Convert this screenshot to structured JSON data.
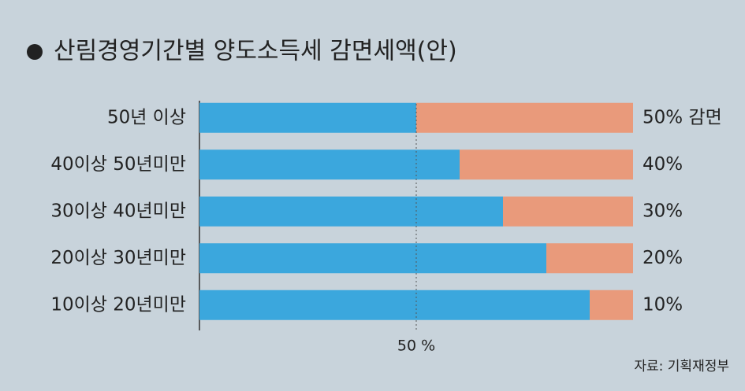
{
  "chart_data": {
    "type": "stacked-barh",
    "title": "산림경영기간별 양도소득세 감면세액(안)",
    "categories": [
      "50년 이상",
      "40이상 50년미만",
      "30이상 40년미만",
      "20이상 30년미만",
      "10이상 20년미만"
    ],
    "series": [
      {
        "color": "#3ba7dd",
        "values": [
          50,
          60,
          70,
          80,
          90
        ]
      },
      {
        "color": "#e99a7b",
        "values": [
          50,
          40,
          30,
          20,
          10
        ],
        "value_labels": [
          "50% 감면",
          "40%",
          "30%",
          "20%",
          "10%"
        ]
      }
    ],
    "xlim": [
      0,
      100
    ],
    "xticks": [
      {
        "value": 50,
        "label": "50 %"
      }
    ],
    "source": "자료: 기획재정부"
  }
}
